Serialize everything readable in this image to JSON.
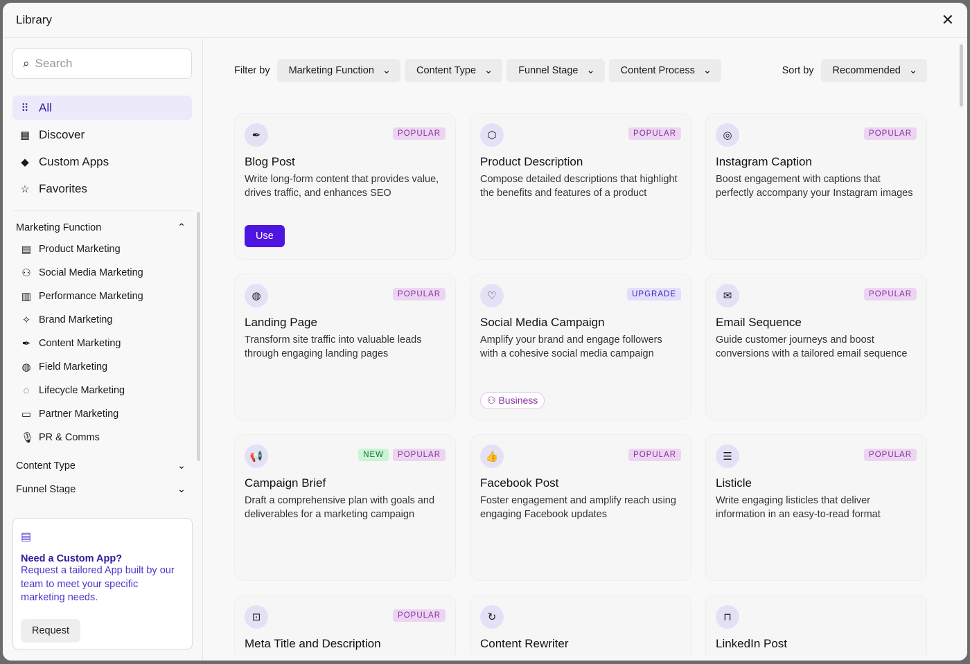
{
  "header": {
    "title": "Library",
    "close": "✕"
  },
  "sidebar": {
    "search_placeholder": "Search",
    "nav": [
      {
        "label": "All",
        "icon": "grid-icon"
      },
      {
        "label": "Discover",
        "icon": "store-icon"
      },
      {
        "label": "Custom Apps",
        "icon": "gem-icon"
      },
      {
        "label": "Favorites",
        "icon": "star-icon"
      }
    ],
    "sections": [
      {
        "label": "Marketing Function",
        "expanded": true,
        "items": [
          "Product Marketing",
          "Social Media Marketing",
          "Performance Marketing",
          "Brand Marketing",
          "Content Marketing",
          "Field Marketing",
          "Lifecycle Marketing",
          "Partner Marketing",
          "PR & Comms"
        ]
      },
      {
        "label": "Content Type",
        "expanded": false
      },
      {
        "label": "Funnel Stage",
        "expanded": false
      }
    ],
    "promo": {
      "title": "Need a Custom App?",
      "text": "Request a tailored App built by our team to meet your specific marketing needs.",
      "button": "Request"
    }
  },
  "filters": {
    "label": "Filter by",
    "options": [
      "Marketing Function",
      "Content Type",
      "Funnel Stage",
      "Content Process"
    ],
    "sort_label": "Sort by",
    "sort_value": "Recommended"
  },
  "cards": [
    {
      "title": "Blog Post",
      "desc": "Write long-form content that provides value, drives traffic, and enhances SEO",
      "badges": [
        "POPULAR"
      ],
      "icon": "pen-icon",
      "action": "Use"
    },
    {
      "title": "Product Description",
      "desc": "Compose detailed descriptions that highlight the benefits and features of a product",
      "badges": [
        "POPULAR"
      ],
      "icon": "box-icon"
    },
    {
      "title": "Instagram Caption",
      "desc": "Boost engagement with captions that perfectly accompany your Instagram images",
      "badges": [
        "POPULAR"
      ],
      "icon": "instagram-icon"
    },
    {
      "title": "Landing Page",
      "desc": "Transform site traffic into valuable leads through engaging landing pages",
      "badges": [
        "POPULAR"
      ],
      "icon": "globe-icon"
    },
    {
      "title": "Social Media Campaign",
      "desc": "Amplify your brand and engage followers with a cohesive social media campaign",
      "badges": [
        "UPGRADE"
      ],
      "icon": "chat-heart-icon",
      "tag": "Business"
    },
    {
      "title": "Email Sequence",
      "desc": "Guide customer journeys and boost conversions with a tailored email sequence",
      "badges": [
        "POPULAR"
      ],
      "icon": "mail-icon"
    },
    {
      "title": "Campaign Brief",
      "desc": "Draft a comprehensive plan with goals and deliverables for a marketing campaign",
      "badges": [
        "NEW",
        "POPULAR"
      ],
      "icon": "megaphone-icon"
    },
    {
      "title": "Facebook Post",
      "desc": "Foster engagement and amplify reach using engaging Facebook updates",
      "badges": [
        "POPULAR"
      ],
      "icon": "thumbs-up-icon"
    },
    {
      "title": "Listicle",
      "desc": "Write engaging listicles that deliver information in an easy-to-read format",
      "badges": [
        "POPULAR"
      ],
      "icon": "list-icon"
    },
    {
      "title": "Meta Title and Description",
      "desc": "",
      "badges": [
        "POPULAR"
      ],
      "icon": "bookmark-icon"
    },
    {
      "title": "Content Rewriter",
      "desc": "",
      "badges": [],
      "icon": "refresh-icon"
    },
    {
      "title": "LinkedIn Post",
      "desc": "",
      "badges": [],
      "icon": "briefcase-icon"
    }
  ]
}
